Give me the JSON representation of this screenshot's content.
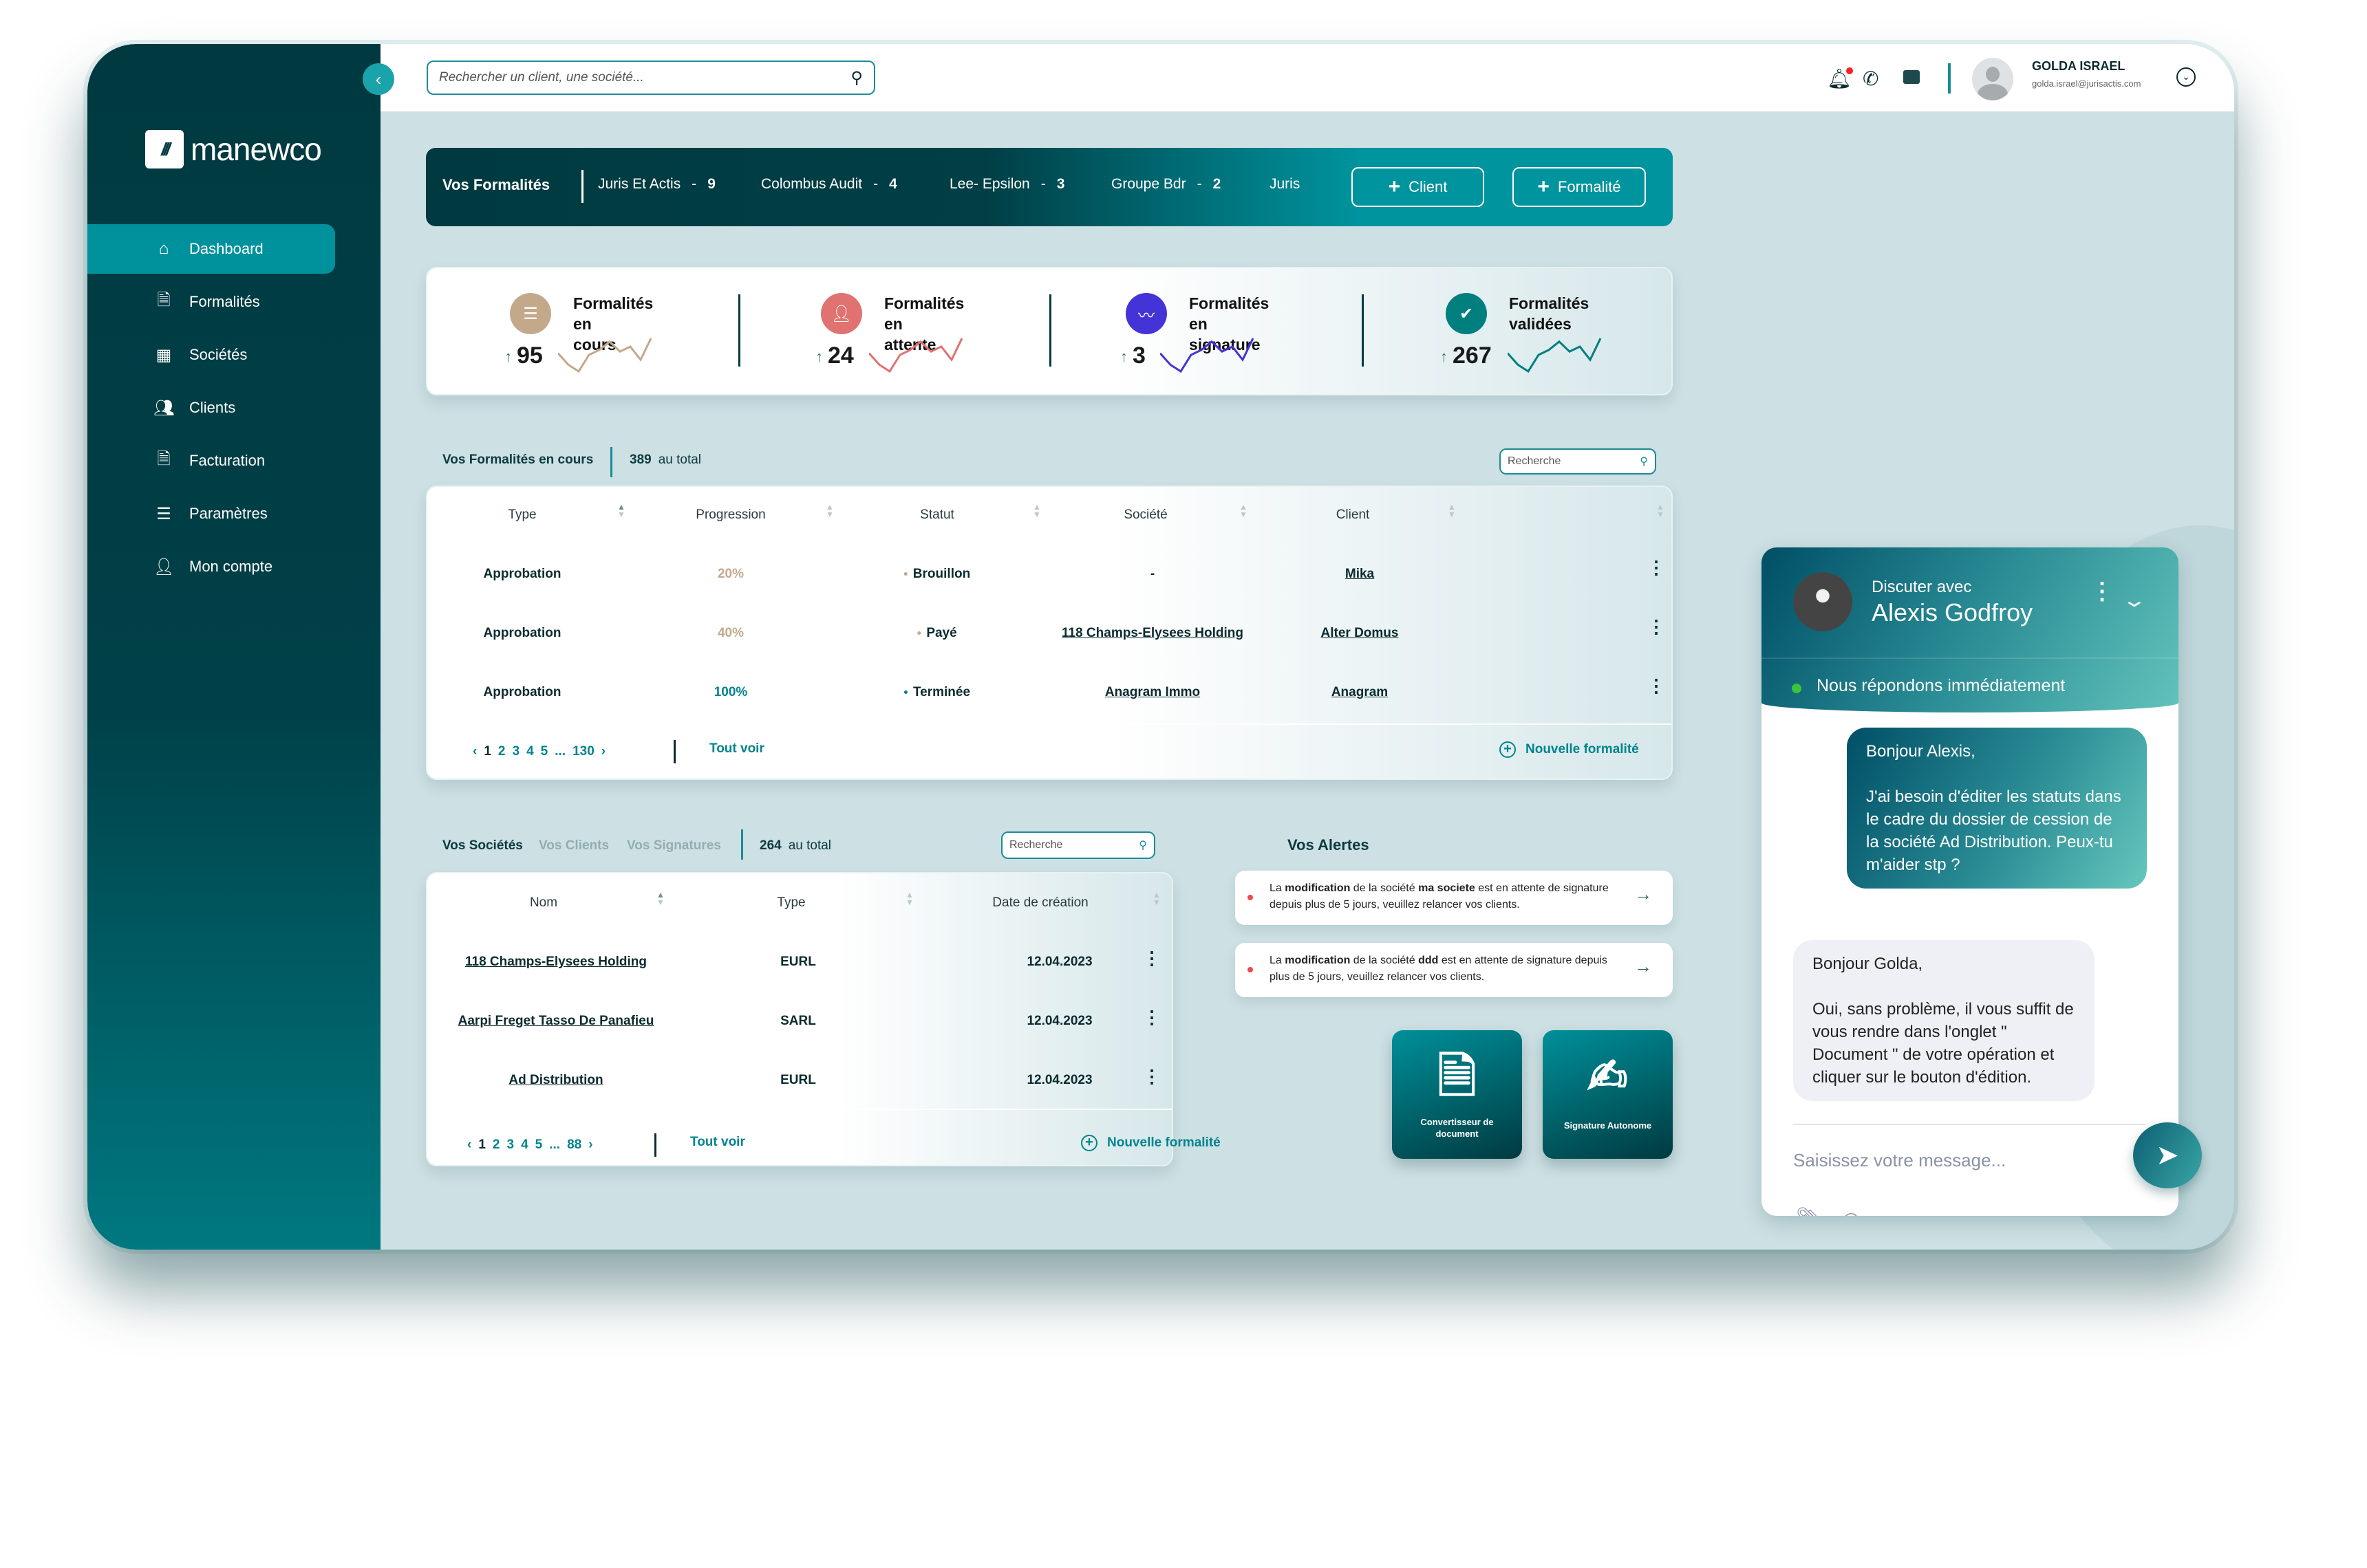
{
  "brand": {
    "name": "manewco"
  },
  "sidebar": {
    "items": [
      {
        "label": "Dashboard",
        "icon": "home-icon",
        "active": true
      },
      {
        "label": "Formalités",
        "icon": "file-signature-icon"
      },
      {
        "label": "Sociétés",
        "icon": "building-icon"
      },
      {
        "label": "Clients",
        "icon": "users-icon"
      },
      {
        "label": "Facturation",
        "icon": "invoice-icon"
      },
      {
        "label": "Paramètres",
        "icon": "sliders-icon"
      },
      {
        "label": "Mon compte",
        "icon": "user-icon"
      }
    ]
  },
  "header": {
    "search_placeholder": "Rechercher un client, une société...",
    "user": {
      "name": "GOLDA ISRAEL",
      "email": "golda.israel@jurisactis.com"
    },
    "notification_color": "#ff1f1f"
  },
  "banner": {
    "title": "Vos Formalités",
    "groups": [
      {
        "name": "Juris Et Actis",
        "sep": "-",
        "count": "9"
      },
      {
        "name": "Colombus Audit",
        "sep": "-",
        "count": "4"
      },
      {
        "name": "Lee- Epsilon",
        "sep": "-",
        "count": "3"
      },
      {
        "name": "Groupe Bdr",
        "sep": "-",
        "count": "2"
      },
      {
        "name": "Juris",
        "sep": "",
        "count": ""
      }
    ],
    "client_btn": "Client",
    "formalite_btn": "Formalité"
  },
  "stats": [
    {
      "line1": "Formalités",
      "line2": "en cours",
      "value": "95",
      "color": "#c4a88a",
      "icon": "list-icon"
    },
    {
      "line1": "Formalités",
      "line2": "en attente",
      "value": "24",
      "color": "#e07272",
      "icon": "user-check-icon"
    },
    {
      "line1": "Formalités",
      "line2": "en signature",
      "value": "3",
      "color": "#4433d6",
      "icon": "signature-icon"
    },
    {
      "line1": "Formalités",
      "line2": "validées",
      "value": "267",
      "color": "#007f7f",
      "icon": "check-icon"
    }
  ],
  "formalites": {
    "title": "Vos Formalités en cours",
    "total": "389",
    "total_label": "au total",
    "search_placeholder": "Recherche",
    "columns": [
      "Type",
      "Progression",
      "Statut",
      "Société",
      "Client"
    ],
    "rows": [
      {
        "type": "Approbation",
        "progress": "20%",
        "progress_color": "#c4a88a",
        "status": "Brouillon",
        "status_color": "#c4a88a",
        "societe": "-",
        "client": "Mika"
      },
      {
        "type": "Approbation",
        "progress": "40%",
        "progress_color": "#c4a88a",
        "status": "Payé",
        "status_color": "#c4a88a",
        "societe": "118 Champs-Elysees Holding",
        "client": "Alter Domus"
      },
      {
        "type": "Approbation",
        "progress": "100%",
        "progress_color": "#00848e",
        "status": "Terminée",
        "status_color": "#00848e",
        "societe": "Anagram Immo",
        "client": "Anagram"
      }
    ],
    "pages": [
      "1",
      "2",
      "3",
      "4",
      "5",
      "...",
      "130"
    ],
    "see_all": "Tout voir",
    "new": "Nouvelle formalité"
  },
  "societes": {
    "tabs": [
      "Vos Sociétés",
      "Vos Clients",
      "Vos Signatures"
    ],
    "total": "264",
    "total_label": "au total",
    "search_placeholder": "Recherche",
    "columns": [
      "Nom",
      "Type",
      "Date de création"
    ],
    "rows": [
      {
        "nom": "118 Champs-Elysees Holding",
        "type": "EURL",
        "date": "12.04.2023"
      },
      {
        "nom": "Aarpi Freget Tasso De Panafieu",
        "type": "SARL",
        "date": "12.04.2023"
      },
      {
        "nom": "Ad Distribution",
        "type": "EURL",
        "date": "12.04.2023"
      }
    ],
    "pages": [
      "1",
      "2",
      "3",
      "4",
      "5",
      "...",
      "88"
    ],
    "see_all": "Tout voir",
    "new": "Nouvelle formalité"
  },
  "alerts": {
    "title": "Vos Alertes",
    "items": [
      {
        "a": "La ",
        "b": "modification",
        "c": " de la société ",
        "d": "ma societe",
        "e": " est en attente de signature depuis plus de 5 jours, veuillez relancer vos clients."
      },
      {
        "a": "La ",
        "b": "modification",
        "c": " de la société ",
        "d": "ddd",
        "e": " est en attente de signature depuis plus de 5 jours, veuillez relancer vos clients."
      }
    ]
  },
  "tools": [
    {
      "label": "Convertisseur de document",
      "icon": "pdf-file-icon"
    },
    {
      "label": "Signature Autonome",
      "icon": "file-signature-icon"
    }
  ],
  "chat": {
    "with_label": "Discuter avec",
    "agent": "Alexis Godfroy",
    "status": "Nous répondons immédiatement",
    "messages": [
      {
        "from": "me",
        "text": "Bonjour Alexis,\n\nJ'ai besoin d'éditer les statuts dans le cadre du dossier de cession de la société Ad Distribution. Peux-tu m'aider stp ?"
      },
      {
        "from": "agent",
        "text": "Bonjour Golda,\n\nOui, sans problème, il vous suffit de vous rendre dans l'onglet \" Document \" de votre opération et cliquer sur le bouton d'édition."
      }
    ],
    "input_placeholder": "Saisissez votre message..."
  }
}
